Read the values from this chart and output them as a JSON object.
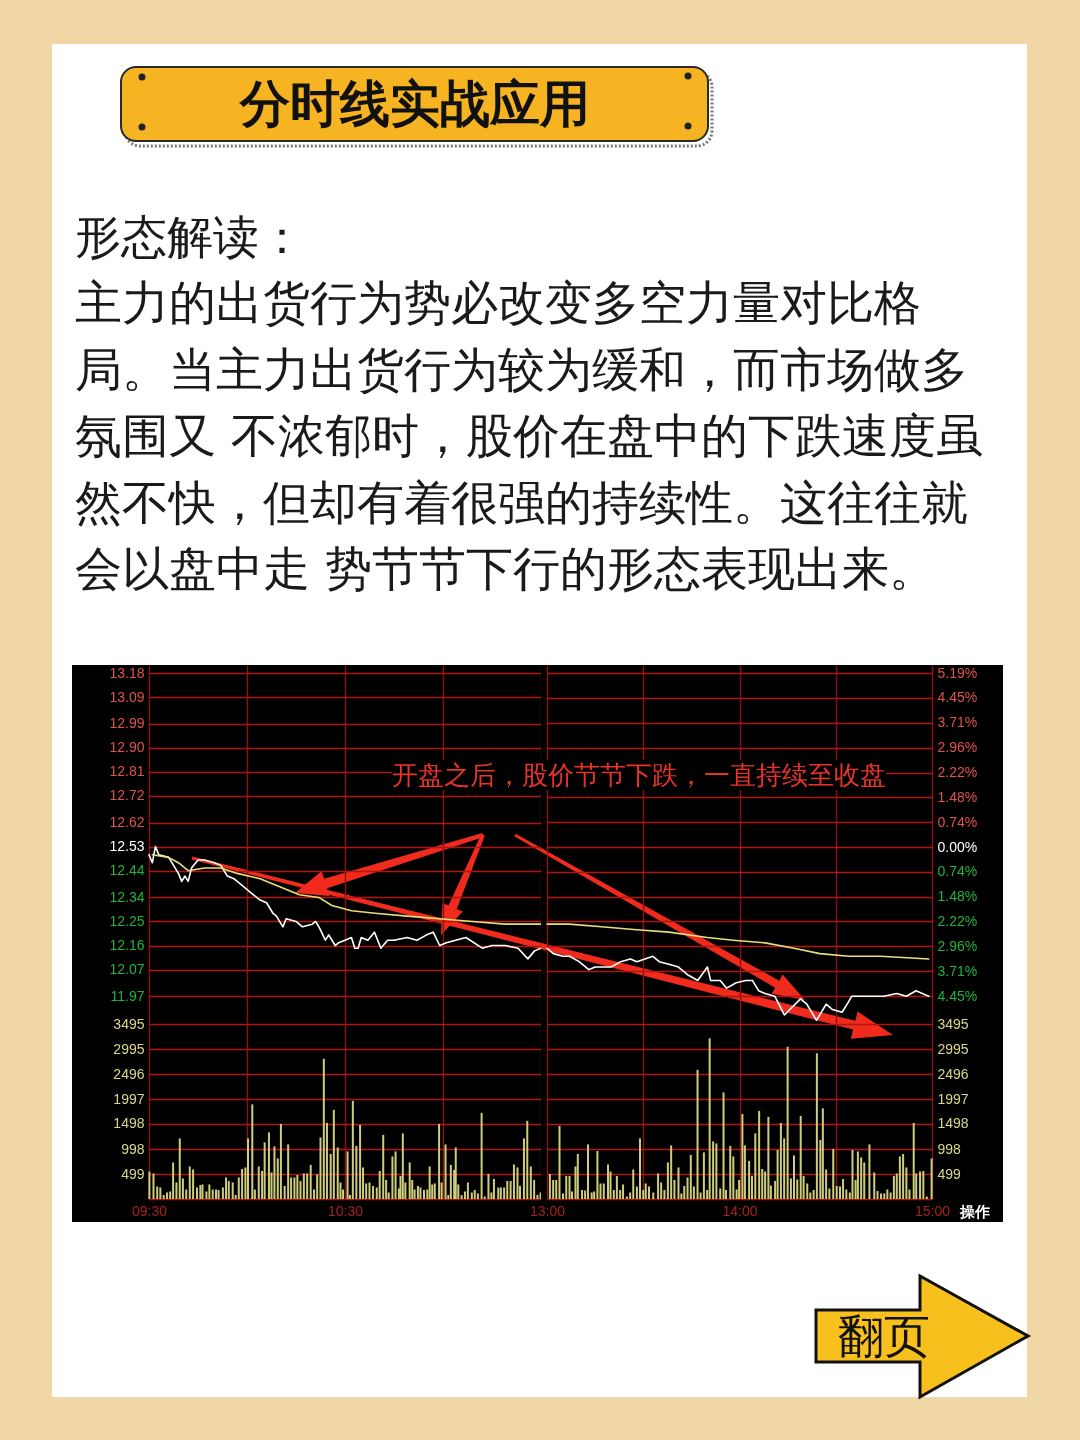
{
  "chart_data": [
    {
      "type": "line",
      "title": "分时线实战应用",
      "subtitle": "形态解读：",
      "annotations": [
        "主力的出货行为势必改变多空力量对比格局。当主力出货行为较为缓和，而市场做多氛围又 不浓郁时，股价在盘中的下跌速度虽然不快，但却有着很强的持续性。这往往就会以盘中走 势节节下行的形态表现出来。",
        "开盘之后，股价节节下跌，一直持续至收盘"
      ],
      "xlim": [
        9.5,
        11.5
      ],
      "xticks": [
        {
          "value": 9.5,
          "label": null
        },
        {
          "value": 10,
          "label": null
        },
        {
          "value": 10.5,
          "label": null
        },
        {
          "value": 11,
          "label": null
        },
        {
          "value": 11.5,
          "label": null
        }
      ],
      "ylim": [
        11.87,
        13.21
      ],
      "yticks": [
        11.97,
        12.07,
        12.16,
        12.25,
        12.34,
        12.44,
        12.53,
        12.62,
        12.72,
        12.81,
        {
          "value": 12.9,
          "label": "12.90"
        },
        12.99,
        13.09,
        13.18
      ],
      "grid": true,
      "tick_labels": "y",
      "series": [
        {
          "color": "#ffffff",
          "x": [
            9.5,
            9.517,
            9.533,
            9.55,
            9.6,
            9.617,
            9.65,
            9.667,
            9.683,
            9.7,
            9.717,
            9.75,
            9.783,
            9.833,
            9.867,
            9.883,
            9.9,
            9.933,
            9.967,
            10.033,
            10.067,
            10.1,
            10.133,
            10.15,
            10.183,
            10.2,
            10.25,
            10.283,
            10.333,
            10.35,
            10.367,
            10.4,
            10.417,
            10.45,
            10.467,
            10.5,
            10.533,
            10.55,
            10.567,
            10.583,
            10.617,
            10.65,
            10.683,
            10.717,
            10.75,
            10.817,
            10.867,
            10.917,
            10.95,
            10.983,
            11.017,
            11.117,
            11.2,
            11.25,
            11.317,
            11.383,
            11.433,
            11.467,
            11.5
          ],
          "values": [
            12.5,
            12.47,
            12.53,
            12.5,
            12.49,
            12.47,
            12.43,
            12.4,
            12.42,
            12.4,
            12.45,
            12.48,
            12.48,
            12.47,
            12.46,
            12.44,
            12.42,
            12.41,
            12.39,
            12.35,
            12.33,
            12.32,
            12.28,
            12.27,
            12.23,
            12.26,
            12.25,
            12.23,
            12.24,
            12.25,
            12.23,
            12.18,
            12.2,
            12.16,
            12.17,
            12.18,
            12.19,
            12.15,
            12.15,
            12.19,
            12.18,
            12.21,
            12.15,
            12.18,
            12.18,
            12.19,
            12.18,
            12.2,
            12.21,
            12.16,
            12.17,
            12.19,
            12.15,
            12.16,
            12.16,
            12.15,
            12.11,
            12.14,
            12.15
          ]
        },
        {
          "color": "#e6df7a",
          "x": [
            9.517,
            9.6,
            9.65,
            9.7,
            9.783,
            9.867,
            9.95,
            10.067,
            10.167,
            10.267,
            10.367,
            10.433,
            10.533,
            10.667,
            10.817,
            10.983,
            11.15,
            11.317,
            11.5
          ],
          "values": [
            12.5,
            12.49,
            12.47,
            12.44,
            12.45,
            12.45,
            12.43,
            12.41,
            12.38,
            12.35,
            12.34,
            12.31,
            12.29,
            12.28,
            12.27,
            12.26,
            12.25,
            12.24,
            12.24
          ]
        }
      ]
    },
    {
      "type": "line",
      "xlim": [
        13,
        15
      ],
      "xticks": [
        {
          "value": 13,
          "label": null
        },
        {
          "value": 13.5,
          "label": null
        },
        {
          "value": 14,
          "label": null
        },
        {
          "value": 14.5,
          "label": null
        },
        {
          "value": 15,
          "label": null
        }
      ],
      "ylim": [
        -5.25,
        5.43
      ],
      "yticks": [
        {
          "value": -4.45,
          "label": "4.45%"
        },
        {
          "value": -3.71,
          "label": "3.71%"
        },
        {
          "value": -2.96,
          "label": "2.96%"
        },
        {
          "value": -2.22,
          "label": "2.22%"
        },
        {
          "value": -1.48,
          "label": "1.48%"
        },
        {
          "value": -0.74,
          "label": "0.74%"
        },
        {
          "value": 0,
          "label": "0.00%"
        },
        {
          "value": 0.74,
          "label": "0.74%"
        },
        {
          "value": 1.48,
          "label": "1.48%"
        },
        {
          "value": 2.22,
          "label": "2.22%"
        },
        {
          "value": 2.96,
          "label": "2.96%"
        },
        {
          "value": 3.71,
          "label": "3.71%"
        },
        {
          "value": 4.45,
          "label": "4.45%"
        },
        {
          "value": 5.19,
          "label": "5.19%"
        }
      ],
      "grid": true,
      "tick_labels": "y",
      "series": [
        {
          "color": "#ffffff",
          "x": [
            13,
            13.033,
            13.083,
            13.117,
            13.167,
            13.217,
            13.25,
            13.283,
            13.333,
            13.383,
            13.433,
            13.467,
            13.55,
            13.583,
            13.633,
            13.683,
            13.733,
            13.783,
            13.833,
            13.85,
            13.9,
            13.933,
            13.983,
            14.033,
            14.067,
            14.1,
            14.133,
            14.183,
            14.233,
            14.317,
            14.35,
            14.4,
            14.45,
            14.483,
            14.533,
            14.567,
            14.583,
            14.65,
            14.7,
            14.75,
            14.817,
            14.867,
            14.917,
            14.95,
            14.983
          ],
          "values": [
            -3.02,
            -3.18,
            -3.26,
            -3.26,
            -3.42,
            -3.66,
            -3.58,
            -3.58,
            -3.58,
            -3.42,
            -3.34,
            -3.42,
            -3.26,
            -3.42,
            -3.5,
            -3.58,
            -3.82,
            -3.98,
            -3.58,
            -3.98,
            -3.98,
            -4.21,
            -4.05,
            -3.98,
            -3.98,
            -4.29,
            -4.37,
            -4.45,
            -5.01,
            -4.53,
            -4.69,
            -5.17,
            -4.69,
            -4.85,
            -4.93,
            -4.61,
            -4.45,
            -4.45,
            -4.45,
            -4.45,
            -4.37,
            -4.45,
            -4.29,
            -4.37,
            -4.45
          ]
        },
        {
          "color": "#e6df7a",
          "x": [
            13,
            13.117,
            13.283,
            13.45,
            13.633,
            13.833,
            13.967,
            14.133,
            14.283,
            14.417,
            14.567,
            14.733,
            14.983
          ],
          "values": [
            -2.3,
            -2.3,
            -2.38,
            -2.46,
            -2.54,
            -2.7,
            -2.78,
            -2.86,
            -3.02,
            -3.18,
            -3.26,
            -3.26,
            -3.34
          ]
        }
      ]
    },
    {
      "type": "bar",
      "color": "#cdcd7c",
      "x": [
        9.502,
        9.523,
        9.542,
        9.558,
        9.575,
        9.592,
        9.608,
        9.623,
        9.64,
        9.657,
        9.673,
        9.69,
        9.708,
        9.725,
        9.745,
        9.762,
        9.773,
        9.793,
        9.808,
        9.825,
        9.842,
        9.855,
        9.877,
        9.893,
        9.907,
        9.927,
        9.942,
        9.958,
        9.975,
        9.992,
        10.005,
        10.027,
        10.04,
        10.06,
        10.077,
        10.09,
        10.112,
        10.125,
        10.14,
        10.157,
        10.173,
        10.192,
        10.21,
        10.225,
        10.242,
        10.257,
        10.273,
        10.29,
        10.307,
        10.325,
        10.342,
        10.358,
        10.375,
        10.392,
        10.408,
        10.427,
        10.443,
        10.463,
        10.477,
        10.49,
        10.513,
        10.525,
        10.54,
        10.558,
        10.577,
        10.592,
        10.608,
        10.625,
        10.643,
        10.662,
        10.677,
        10.695,
        10.71,
        10.723,
        10.742,
        10.758,
        10.775,
        10.783,
        10.795,
        10.808,
        10.83,
        10.843,
        10.855,
        10.872,
        10.885,
        10.903,
        10.92,
        10.932,
        10.945,
        10.958,
        10.98,
        10.993,
        11.013,
        11.027,
        11.04,
        11.057,
        11.065,
        11.078,
        11.095,
        11.112,
        11.127,
        11.147,
        11.162,
        11.178,
        11.197,
        11.213,
        11.232,
        11.247,
        11.26,
        11.282,
        11.295,
        11.312,
        11.328,
        11.345,
        11.362,
        11.38,
        11.393,
        11.413,
        11.43,
        11.448,
        11.465,
        11.482,
        11.498
      ],
      "values": [
        550,
        510,
        250,
        230,
        80,
        130,
        150,
        730,
        330,
        1210,
        410,
        190,
        650,
        590,
        230,
        280,
        290,
        150,
        290,
        190,
        190,
        180,
        230,
        430,
        360,
        330,
        80,
        430,
        600,
        630,
        1210,
        1890,
        190,
        650,
        560,
        1130,
        1330,
        530,
        1050,
        810,
        1500,
        260,
        1090,
        430,
        430,
        480,
        360,
        510,
        510,
        680,
        190,
        490,
        1230,
        2800,
        1520,
        900,
        1780,
        1030,
        330,
        190,
        950,
        80,
        1960,
        1060,
        1480,
        630,
        310,
        330,
        260,
        230,
        560,
        1280,
        380,
        130,
        850,
        950,
        210,
        460,
        1310,
        330,
        730,
        380,
        190,
        260,
        230,
        180,
        190,
        650,
        290,
        310,
        1500,
        330,
        1090,
        80,
        680,
        580,
        1030,
        290,
        80,
        150,
        330,
        130,
        180,
        110,
        1720,
        50,
        500,
        130,
        400,
        230,
        230,
        230,
        360,
        360,
        690,
        630,
        260,
        1210,
        1560,
        650,
        380,
        80,
        130
      ],
      "xlim": [
        9.5,
        11.5
      ],
      "xticks": [
        {
          "value": 9.5,
          "label": "09:30"
        },
        {
          "value": 10,
          "label": null
        },
        {
          "value": 10.5,
          "label": "10:30"
        },
        {
          "value": 11,
          "label": null
        },
        {
          "value": 11.5,
          "label": null
        }
      ],
      "ylim": [
        0,
        3495
      ],
      "yticks": [
        499,
        998,
        1498,
        1997,
        2496,
        2995,
        3495
      ],
      "grid": true
    },
    {
      "type": "bar",
      "color": "#cdcd7c",
      "annotations": [
        "操作",
        "翻页"
      ],
      "x": [
        13.015,
        13.032,
        13.048,
        13.065,
        13.083,
        13.1,
        13.117,
        13.13,
        13.148,
        13.16,
        13.182,
        13.198,
        13.213,
        13.232,
        13.245,
        13.262,
        13.278,
        13.295,
        13.317,
        13.33,
        13.347,
        13.363,
        13.38,
        13.395,
        13.415,
        13.432,
        13.448,
        13.467,
        13.483,
        13.5,
        13.513,
        13.53,
        13.552,
        13.577,
        13.593,
        13.61,
        13.628,
        13.645,
        13.662,
        13.683,
        13.698,
        13.713,
        13.73,
        13.747,
        13.763,
        13.782,
        13.798,
        13.815,
        13.832,
        13.845,
        13.863,
        13.88,
        13.9,
        13.917,
        13.93,
        13.952,
        13.968,
        13.985,
        13.998,
        14.015,
        14.028,
        14.05,
        14.065,
        14.082,
        14.102,
        14.118,
        14.133,
        14.15,
        14.163,
        14.185,
        14.198,
        14.215,
        14.232,
        14.25,
        14.267,
        14.283,
        14.3,
        14.318,
        14.333,
        14.352,
        14.368,
        14.385,
        14.402,
        14.42,
        14.433,
        14.45,
        14.467,
        14.487,
        14.505,
        14.522,
        14.538,
        14.555,
        14.573,
        14.587,
        14.603,
        14.615,
        14.632,
        14.648,
        14.675,
        14.7,
        14.717,
        14.735,
        14.752,
        14.768,
        14.785,
        14.802,
        14.817,
        14.833,
        14.85,
        14.867,
        14.883,
        14.905,
        14.918,
        14.938,
        14.955,
        14.973,
        14.998
      ],
      "values": [
        500,
        380,
        380,
        1460,
        110,
        460,
        460,
        150,
        650,
        900,
        180,
        170,
        1090,
        130,
        150,
        960,
        310,
        310,
        690,
        550,
        180,
        460,
        180,
        290,
        50,
        130,
        590,
        250,
        1210,
        180,
        310,
        250,
        130,
        510,
        330,
        180,
        730,
        1070,
        380,
        630,
        110,
        260,
        430,
        880,
        250,
        2580,
        130,
        930,
        180,
        3210,
        1150,
        1110,
        210,
        2130,
        180,
        1060,
        850,
        190,
        380,
        1700,
        1070,
        760,
        460,
        1310,
        1760,
        600,
        550,
        1640,
        270,
        360,
        980,
        1520,
        1210,
        3040,
        410,
        870,
        390,
        1660,
        460,
        310,
        130,
        180,
        2910,
        1180,
        1810,
        590,
        210,
        1000,
        260,
        250,
        400,
        190,
        130,
        980,
        380,
        950,
        830,
        730,
        1090,
        530,
        160,
        110,
        110,
        190,
        130,
        460,
        510,
        850,
        900,
        630,
        190,
        1520,
        510,
        550,
        560,
        50,
        810
      ],
      "xlim": [
        13,
        15
      ],
      "xticks": [
        {
          "value": 13,
          "label": "13:00"
        },
        {
          "value": 13.5,
          "label": null
        },
        {
          "value": 14,
          "label": "14:00"
        },
        {
          "value": 14.5,
          "label": null
        },
        {
          "value": 15,
          "label": "15:00"
        }
      ],
      "ylim": [
        0,
        3495
      ],
      "yticks": [
        499,
        998,
        1498,
        1997,
        2496,
        2995,
        3495
      ],
      "grid": true
    }
  ]
}
